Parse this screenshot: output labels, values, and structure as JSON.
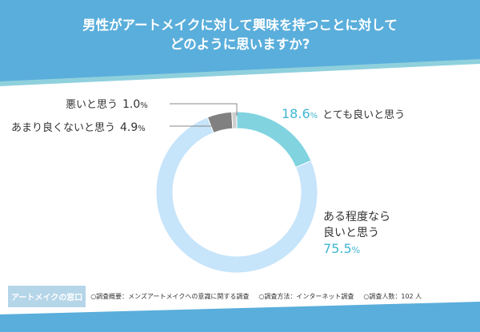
{
  "title_lines": [
    "男性がアートメイクに対して興味を持つことに対して",
    "どのように思いますか?"
  ],
  "colors": {
    "header": "#5aaedb",
    "accent_strip": "#8fd0dd",
    "footer": "#5aaedb"
  },
  "chart_data": {
    "type": "pie",
    "donut": true,
    "title": "男性がアートメイクに対して興味を持つことに対して どのように思いますか?",
    "slices": [
      {
        "label": "とても良いと思う",
        "value": 18.6,
        "color": "#80d3df"
      },
      {
        "label": "ある程度なら良いと思う",
        "value": 75.5,
        "color": "#c6e4fa"
      },
      {
        "label": "あまり良くないと思う",
        "value": 4.9,
        "color": "#808080"
      },
      {
        "label": "悪いと思う",
        "value": 1.0,
        "color": "#cfcfcf"
      }
    ]
  },
  "labels": {
    "s0_text": "とても良いと思う",
    "s0_pct": "18.6",
    "s1_text1": "ある程度なら",
    "s1_text2": "良いと思う",
    "s1_pct": "75.5",
    "s2_text": "あまり良くないと思う",
    "s2_pct": "4.9",
    "s3_text": "悪いと思う",
    "s3_pct": "1.0",
    "pct_unit": "%"
  },
  "footer": {
    "brand": "アートメイクの窓口",
    "items": [
      "○調査概要：メンズアートメイクへの意識に関する調査",
      "○調査方法：インターネット調査",
      "○調査人数：102 人"
    ]
  }
}
